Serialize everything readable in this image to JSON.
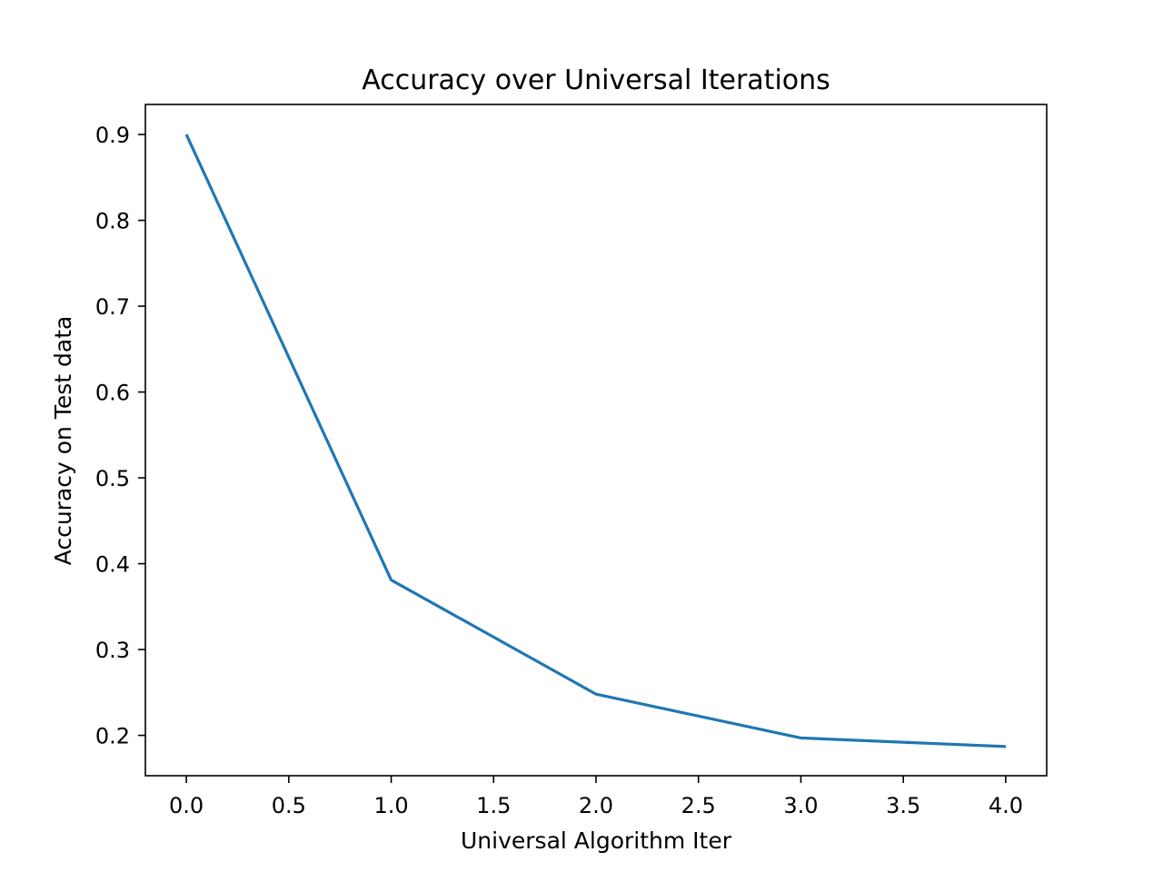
{
  "chart_data": {
    "type": "line",
    "title": "Accuracy over Universal Iterations",
    "xlabel": "Universal Algorithm Iter",
    "ylabel": "Accuracy on Test data",
    "xlim": [
      -0.2,
      4.2
    ],
    "ylim": [
      0.153,
      0.935
    ],
    "xticks": [
      0.0,
      0.5,
      1.0,
      1.5,
      2.0,
      2.5,
      3.0,
      3.5,
      4.0
    ],
    "xtick_labels": [
      "0.0",
      "0.5",
      "1.0",
      "1.5",
      "2.0",
      "2.5",
      "3.0",
      "3.5",
      "4.0"
    ],
    "yticks": [
      0.2,
      0.3,
      0.4,
      0.5,
      0.6,
      0.7,
      0.8,
      0.9
    ],
    "ytick_labels": [
      "0.2",
      "0.3",
      "0.4",
      "0.5",
      "0.6",
      "0.7",
      "0.8",
      "0.9"
    ],
    "grid": false,
    "series": [
      {
        "color": "#1f77b4",
        "x": [
          0,
          1,
          2,
          3,
          4
        ],
        "y": [
          0.9,
          0.381,
          0.248,
          0.197,
          0.187
        ]
      }
    ]
  }
}
